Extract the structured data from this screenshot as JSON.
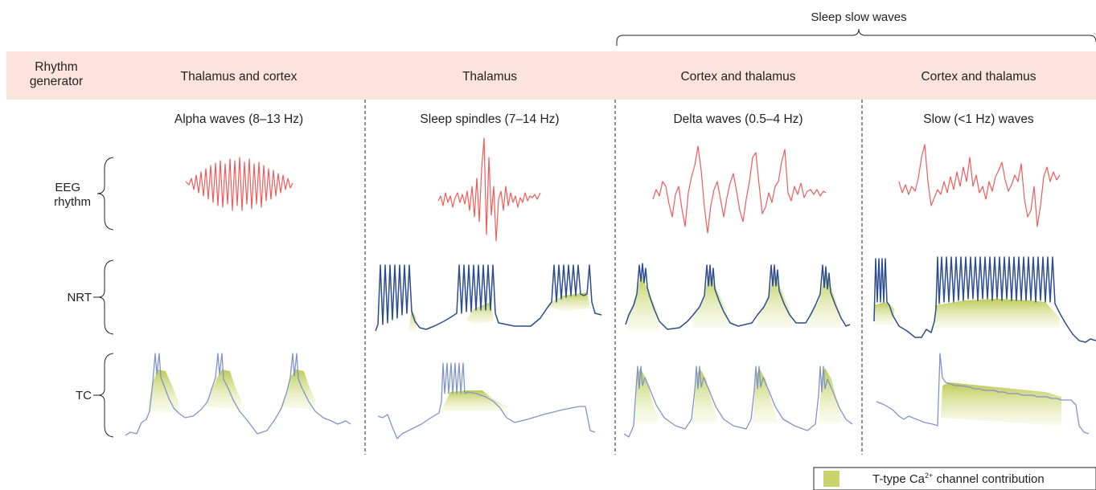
{
  "sleep_slow_waves_label": "Sleep slow waves",
  "header_row": {
    "label_line1": "Rhythm",
    "label_line2": "generator",
    "columns": [
      "Thalamus and cortex",
      "Thalamus",
      "Cortex and thalamus",
      "Cortex and thalamus"
    ],
    "background_color": "#fde3dd"
  },
  "rhythm_titles": [
    "Alpha waves (8–13 Hz)",
    "Sleep spindles (7–14 Hz)",
    "Delta waves (0.5–4 Hz)",
    "Slow (<1 Hz) waves"
  ],
  "row_labels": {
    "eeg_line1": "EEG",
    "eeg_line2": "rhythm",
    "nrt": "NRT",
    "tc": "TC"
  },
  "legend": {
    "text_prefix": "T-type Ca",
    "text_superscript": "2+",
    "text_suffix": " channel contribution",
    "swatch_color": "#c8d36b"
  },
  "colors": {
    "eeg_trace": "#ef5b5b",
    "nrt_trace": "#2b4d8c",
    "tc_trace": "#7f94c8",
    "ca_fill": "#c8d36b"
  }
}
